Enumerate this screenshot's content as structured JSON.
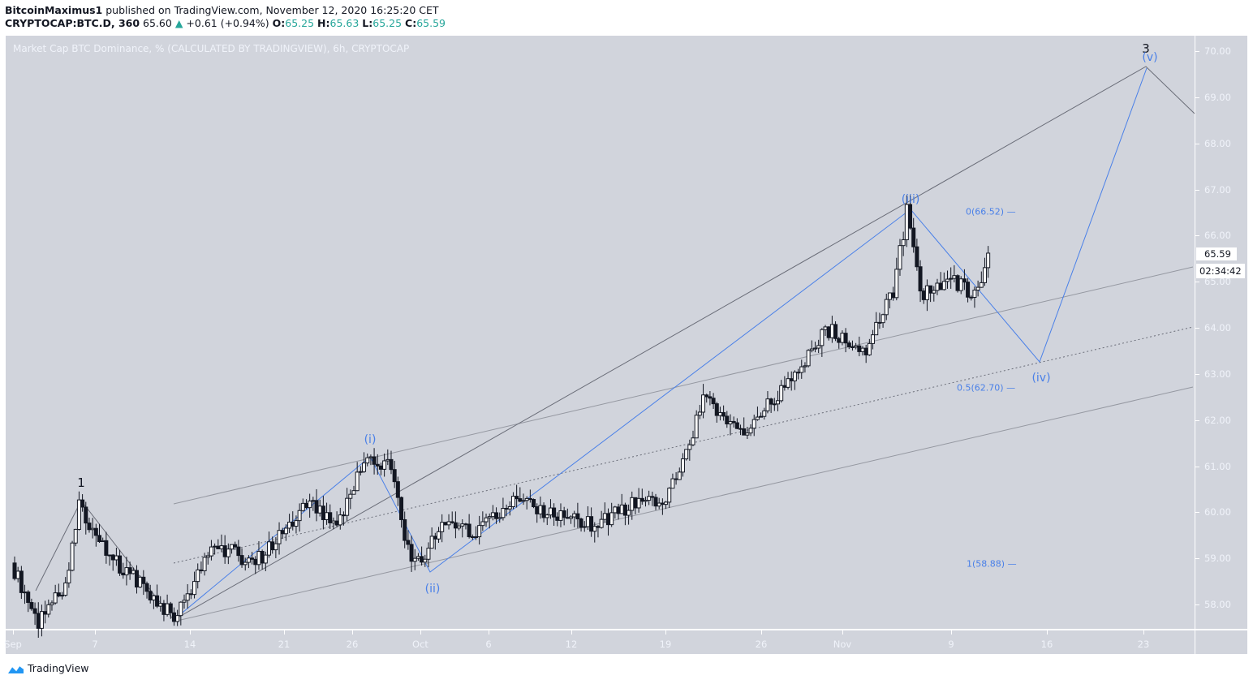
{
  "header": {
    "author": "BitcoinMaximus1",
    "published_text": "published on TradingView.com, November 12, 2020 16:25:20 CET",
    "symbol": "CRYPTOCAP:BTC.D, 360",
    "price": "65.60",
    "change_icon": "triangle-up-icon",
    "change": "+0.61 (+0.94%)",
    "o_label": "O:",
    "o_value": "65.25",
    "h_label": "H:",
    "h_value": "65.63",
    "l_label": "L:",
    "l_value": "65.25",
    "c_label": "C:",
    "c_value": "65.59"
  },
  "chart_title": "Market Cap BTC Dominance, % (CALCULATED BY TRADINGVIEW), 6h, CRYPTOCAP",
  "price_axis": {
    "ticks": [
      "70.00",
      "69.00",
      "68.00",
      "67.00",
      "66.00",
      "65.00",
      "64.00",
      "63.00",
      "62.00",
      "61.00",
      "60.00",
      "59.00",
      "58.00"
    ],
    "last_price": "65.59",
    "countdown": "02:34:42"
  },
  "time_axis": {
    "ticks": [
      {
        "label": "Sep",
        "x": 16
      },
      {
        "label": "7",
        "x": 117
      },
      {
        "label": "14",
        "x": 234
      },
      {
        "label": "21",
        "x": 350
      },
      {
        "label": "26",
        "x": 434
      },
      {
        "label": "Oct",
        "x": 518
      },
      {
        "label": "6",
        "x": 602
      },
      {
        "label": "12",
        "x": 704
      },
      {
        "label": "19",
        "x": 820
      },
      {
        "label": "26",
        "x": 938
      },
      {
        "label": "Nov",
        "x": 1038
      },
      {
        "label": "9",
        "x": 1172
      },
      {
        "label": "16",
        "x": 1290
      },
      {
        "label": "23",
        "x": 1409
      }
    ]
  },
  "annotations": {
    "wave_1": "1",
    "wave_3": "3",
    "wave_i": "(i)",
    "wave_ii": "(ii)",
    "wave_iii": "(iii)",
    "wave_iv": "(iv)",
    "wave_v": "(v)",
    "fib_0": "0(66.52)",
    "fib_05": "0.5(62.70)",
    "fib_1": "1(58.88)"
  },
  "colors": {
    "plot_bg": "#d1d4dc",
    "candle": "#131722",
    "wave_blue": "#4a80e8",
    "up_green": "#26a69a"
  },
  "footer": {
    "brand": "TradingView",
    "logo_icon": "tradingview-logo-icon"
  },
  "chart_data": {
    "type": "candlestick",
    "title": "Market Cap BTC Dominance, % (CALCULATED BY TRADINGVIEW), 6h, CRYPTOCAP",
    "symbol": "CRYPTOCAP:BTC.D",
    "interval": "6h",
    "xlabel": "",
    "ylabel": "%",
    "ylim": [
      57.5,
      70.3
    ],
    "x_ticks": [
      "Sep",
      "7",
      "14",
      "21",
      "26",
      "Oct",
      "6",
      "12",
      "19",
      "26",
      "Nov",
      "9",
      "16",
      "23"
    ],
    "y_ticks": [
      58,
      59,
      60,
      61,
      62,
      63,
      64,
      65,
      66,
      67,
      68,
      69,
      70
    ],
    "approx_close_path": [
      {
        "date": "Sep 1",
        "value": 58.9
      },
      {
        "date": "Sep 3",
        "value": 57.6
      },
      {
        "date": "Sep 5",
        "value": 58.4
      },
      {
        "date": "Sep 6",
        "value": 60.2
      },
      {
        "date": "Sep 8",
        "value": 59.1
      },
      {
        "date": "Sep 10",
        "value": 58.6
      },
      {
        "date": "Sep 13",
        "value": 57.7
      },
      {
        "date": "Sep 16",
        "value": 59.3
      },
      {
        "date": "Sep 19",
        "value": 58.9
      },
      {
        "date": "Sep 23",
        "value": 60.2
      },
      {
        "date": "Sep 25",
        "value": 59.6
      },
      {
        "date": "Sep 27",
        "value": 61.1
      },
      {
        "date": "Sep 29",
        "value": 61.0
      },
      {
        "date": "Sep 30",
        "value": 59.3
      },
      {
        "date": "Oct 1",
        "value": 58.9
      },
      {
        "date": "Oct 3",
        "value": 59.8
      },
      {
        "date": "Oct 5",
        "value": 59.5
      },
      {
        "date": "Oct 8",
        "value": 60.2
      },
      {
        "date": "Oct 12",
        "value": 59.9
      },
      {
        "date": "Oct 14",
        "value": 59.7
      },
      {
        "date": "Oct 17",
        "value": 60.2
      },
      {
        "date": "Oct 19",
        "value": 60.2
      },
      {
        "date": "Oct 21",
        "value": 61.5
      },
      {
        "date": "Oct 22",
        "value": 62.5
      },
      {
        "date": "Oct 25",
        "value": 61.7
      },
      {
        "date": "Oct 27",
        "value": 62.4
      },
      {
        "date": "Oct 29",
        "value": 63.0
      },
      {
        "date": "Oct 31",
        "value": 64.0
      },
      {
        "date": "Nov 3",
        "value": 63.5
      },
      {
        "date": "Nov 5",
        "value": 64.8
      },
      {
        "date": "Nov 6",
        "value": 66.5
      },
      {
        "date": "Nov 7",
        "value": 64.7
      },
      {
        "date": "Nov 9",
        "value": 65.1
      },
      {
        "date": "Nov 11",
        "value": 64.7
      },
      {
        "date": "Nov 12",
        "value": 65.59
      }
    ],
    "last": {
      "open": 65.25,
      "high": 65.63,
      "low": 65.25,
      "close": 65.59,
      "change": 0.61,
      "change_pct": 0.94
    },
    "elliott_waves": [
      {
        "label": "1",
        "date": "Sep 6",
        "value": 60.2
      },
      {
        "label": "(i)",
        "date": "Sep 27",
        "value": 61.2
      },
      {
        "label": "(ii)",
        "date": "Oct 1",
        "value": 58.7
      },
      {
        "label": "(iii)",
        "date": "Nov 6",
        "value": 66.4
      },
      {
        "label": "(iv)",
        "date": "Nov 15",
        "value": 63.3,
        "projected": true
      },
      {
        "label": "(v)",
        "date": "Nov 23",
        "value": 69.7,
        "projected": true
      },
      {
        "label": "3",
        "date": "Nov 23",
        "value": 69.7,
        "projected": true
      }
    ],
    "fib_levels": [
      {
        "ratio": "0",
        "value": 66.52
      },
      {
        "ratio": "0.5",
        "value": 62.7
      },
      {
        "ratio": "1",
        "value": 58.88
      }
    ],
    "channel_lines": [
      {
        "name": "upper",
        "from": {
          "date": "Sep 13",
          "value": 60.2
        },
        "to": {
          "date": "Nov 27",
          "value": 65.3
        }
      },
      {
        "name": "middle-dotted",
        "from": {
          "date": "Sep 13",
          "value": 58.9
        },
        "to": {
          "date": "Nov 27",
          "value": 64.0
        }
      },
      {
        "name": "lower",
        "from": {
          "date": "Sep 13",
          "value": 57.6
        },
        "to": {
          "date": "Nov 27",
          "value": 62.7
        }
      }
    ],
    "legend_position": "none",
    "grid": false
  }
}
